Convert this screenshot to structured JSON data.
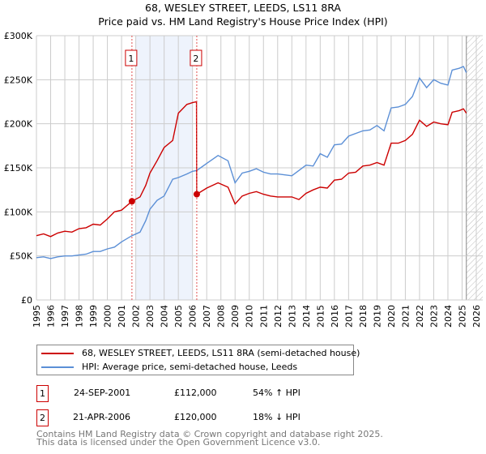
{
  "chart_data": {
    "type": "line",
    "title": "68, WESLEY STREET, LEEDS, LS11 8RA",
    "subtitle": "Price paid vs. HM Land Registry's House Price Index (HPI)",
    "xlim": [
      1995,
      2026
    ],
    "ylim": [
      0,
      300000
    ],
    "y_ticks": [
      {
        "v": 0,
        "label": "£0"
      },
      {
        "v": 50000,
        "label": "£50K"
      },
      {
        "v": 100000,
        "label": "£100K"
      },
      {
        "v": 150000,
        "label": "£150K"
      },
      {
        "v": 200000,
        "label": "£200K"
      },
      {
        "v": 250000,
        "label": "£250K"
      },
      {
        "v": 300000,
        "label": "£300K"
      }
    ],
    "x_ticks": [
      "1995",
      "1996",
      "1997",
      "1998",
      "1999",
      "2000",
      "2001",
      "2002",
      "2003",
      "2004",
      "2005",
      "2006",
      "2007",
      "2008",
      "2009",
      "2010",
      "2011",
      "2012",
      "2013",
      "2014",
      "2015",
      "2016",
      "2017",
      "2018",
      "2019",
      "2020",
      "2021",
      "2022",
      "2023",
      "2024",
      "2025",
      "2026"
    ],
    "grid": true,
    "shaded_range": [
      2002.0,
      2006.0
    ],
    "hatch_from": 2025.3,
    "series": [
      {
        "name": "68, WESLEY STREET, LEEDS, LS11 8RA (semi-detached house)",
        "color": "#cc0000",
        "x": [
          1995,
          1995.5,
          1996,
          1996.5,
          1997,
          1997.5,
          1998,
          1998.5,
          1999,
          1999.5,
          2000,
          2000.5,
          2001,
          2001.73,
          2002.3,
          2002.7,
          2003,
          2003.5,
          2004,
          2004.6,
          2005,
          2005.6,
          2006.0,
          2006.28,
          2006.3,
          2007,
          2007.8,
          2008.5,
          2009,
          2009.5,
          2010,
          2010.5,
          2011,
          2011.5,
          2012,
          2013,
          2013.5,
          2014,
          2014.5,
          2015,
          2015.5,
          2016,
          2016.5,
          2017,
          2017.5,
          2018,
          2018.5,
          2019,
          2019.5,
          2020,
          2020.5,
          2021,
          2021.5,
          2022,
          2022.5,
          2023,
          2023.5,
          2024,
          2024.3,
          2024.8,
          2025.1,
          2025.3
        ],
        "values": [
          73000,
          75000,
          72000,
          76000,
          78000,
          77000,
          81000,
          82000,
          86000,
          85000,
          92000,
          100000,
          102000,
          112000,
          117000,
          130000,
          144000,
          158000,
          173000,
          181000,
          212000,
          222000,
          224000,
          225000,
          120000,
          127000,
          133000,
          128000,
          109000,
          118000,
          121000,
          123000,
          120000,
          118000,
          117000,
          117000,
          114000,
          121000,
          125000,
          128000,
          127000,
          136000,
          137000,
          144000,
          145000,
          152000,
          153000,
          156000,
          153000,
          178000,
          178000,
          181000,
          188000,
          204000,
          197000,
          202000,
          200000,
          199000,
          213000,
          215000,
          217000,
          212000
        ]
      },
      {
        "name": "HPI: Average price, semi-detached house, Leeds",
        "color": "#5b8fd6",
        "x": [
          1995,
          1995.5,
          1996,
          1996.5,
          1997,
          1997.5,
          1998,
          1998.5,
          1999,
          1999.5,
          2000,
          2000.5,
          2001,
          2001.73,
          2002.3,
          2002.7,
          2003,
          2003.5,
          2004,
          2004.6,
          2005,
          2005.6,
          2006.0,
          2006.3,
          2007,
          2007.8,
          2008.5,
          2009,
          2009.5,
          2010,
          2010.5,
          2011,
          2011.5,
          2012,
          2013,
          2013.5,
          2014,
          2014.5,
          2015,
          2015.5,
          2016,
          2016.5,
          2017,
          2017.5,
          2018,
          2018.5,
          2019,
          2019.5,
          2020,
          2020.5,
          2021,
          2021.5,
          2022,
          2022.5,
          2023,
          2023.5,
          2024,
          2024.3,
          2024.8,
          2025.1,
          2025.3
        ],
        "values": [
          48000,
          49000,
          47000,
          49000,
          50000,
          50000,
          51000,
          52000,
          55000,
          55000,
          58000,
          60000,
          66000,
          73000,
          77000,
          90000,
          103000,
          113000,
          118000,
          137000,
          139000,
          143000,
          146000,
          147000,
          155000,
          164000,
          158000,
          133000,
          144000,
          146000,
          149000,
          145000,
          143000,
          143000,
          141000,
          147000,
          153000,
          152000,
          166000,
          162000,
          176000,
          177000,
          186000,
          189000,
          192000,
          193000,
          198000,
          192000,
          218000,
          219000,
          222000,
          231000,
          252000,
          241000,
          250000,
          246000,
          244000,
          261000,
          263000,
          265000,
          258000
        ]
      }
    ],
    "annotations": [
      {
        "label": "1",
        "x": 2001.73,
        "value": 112000
      },
      {
        "label": "2",
        "x": 2006.3,
        "value": 120000
      }
    ]
  },
  "legend": {
    "items": [
      {
        "label": "68, WESLEY STREET, LEEDS, LS11 8RA (semi-detached house)",
        "color": "#cc0000"
      },
      {
        "label": "HPI: Average price, semi-detached house, Leeds",
        "color": "#5b8fd6"
      }
    ]
  },
  "sales": [
    {
      "num": "1",
      "date": "24-SEP-2001",
      "price": "£112,000",
      "hpi": "54% ↑ HPI"
    },
    {
      "num": "2",
      "date": "21-APR-2006",
      "price": "£120,000",
      "hpi": "18% ↓ HPI"
    }
  ],
  "footer": {
    "line1": "Contains HM Land Registry data © Crown copyright and database right 2025.",
    "line2": "This data is licensed under the Open Government Licence v3.0."
  }
}
